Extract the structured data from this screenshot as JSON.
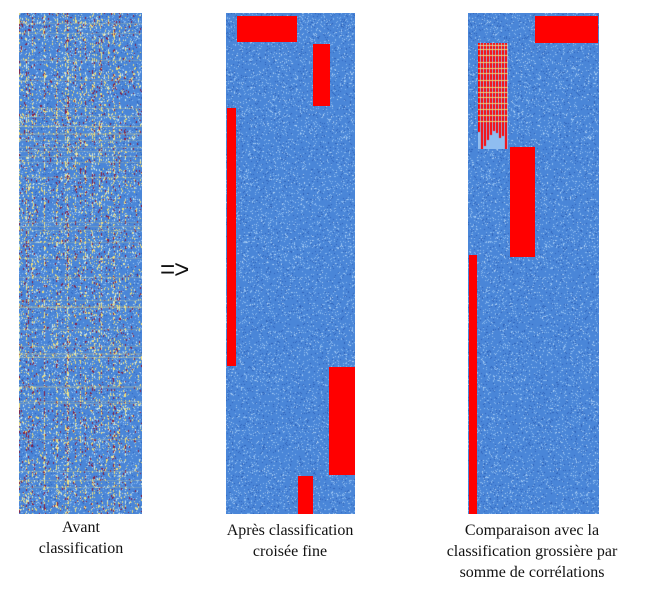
{
  "panels": [
    {
      "id": "before",
      "caption": "Avant\nclassification"
    },
    {
      "id": "fine",
      "caption": "Après classification\ncroisée fine"
    },
    {
      "id": "compare",
      "caption": "Comparaison avec la\nclassification grossière par\nsomme de corrélations"
    }
  ],
  "arrow": "=>",
  "colors": {
    "base_blue": "#4a86d8",
    "light_blue": "#8fbdf0",
    "dark_blue": "#2e62b8",
    "yellow": "#f3e17a",
    "dark_red": "#8b1c3c",
    "block_red": "#ff0000"
  }
}
